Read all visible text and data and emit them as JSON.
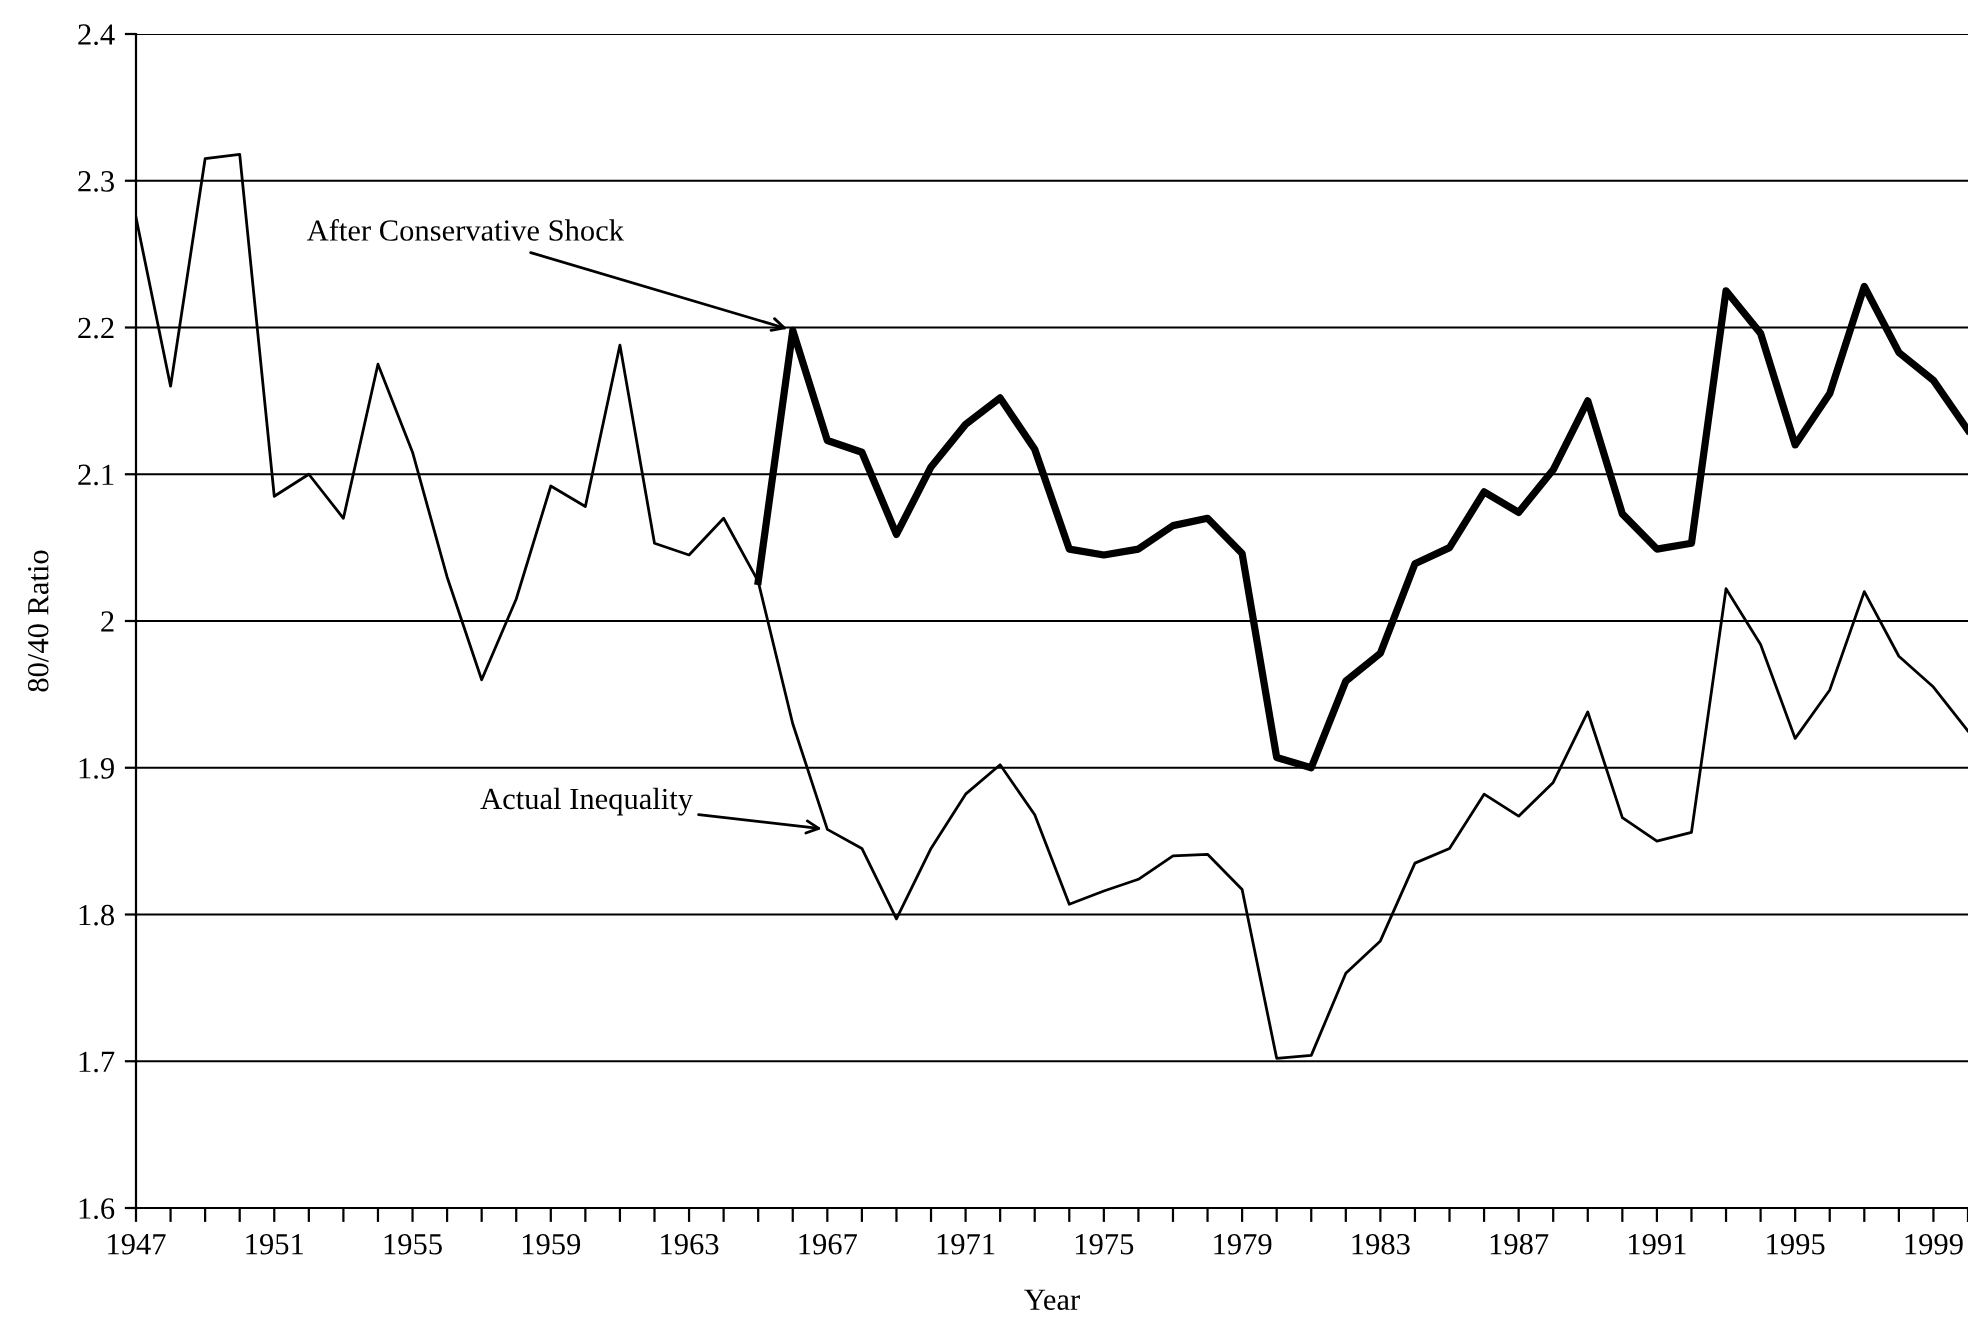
{
  "chart_data": {
    "type": "line",
    "xlabel": "Year",
    "ylabel": "80/40 Ratio",
    "series": [
      {
        "color": "#000000",
        "x": [
          1947,
          1948,
          1949,
          1950,
          1951,
          1952,
          1953,
          1954,
          1955,
          1956,
          1957,
          1958,
          1959,
          1960,
          1961,
          1962,
          1963,
          1964,
          1965,
          1966,
          1967,
          1968,
          1969,
          1970,
          1971,
          1972,
          1973,
          1974,
          1975,
          1976,
          1977,
          1978,
          1979,
          1980,
          1981,
          1982,
          1983,
          1984,
          1985,
          1986,
          1987,
          1988,
          1989,
          1990,
          1991,
          1992,
          1993,
          1994,
          1995,
          1996,
          1997,
          1998,
          1999,
          2000
        ],
        "values": [
          2.275,
          2.16,
          2.315,
          2.318,
          2.085,
          2.1,
          2.07,
          2.175,
          2.115,
          2.03,
          1.96,
          2.015,
          2.092,
          2.078,
          2.188,
          2.053,
          2.045,
          2.07,
          2.027,
          1.93,
          1.858,
          1.845,
          1.797,
          1.845,
          1.882,
          1.902,
          1.868,
          1.807,
          1.816,
          1.824,
          1.84,
          1.841,
          1.817,
          1.702,
          1.704,
          1.76,
          1.782,
          1.835,
          1.845,
          1.882,
          1.867,
          1.89,
          1.938,
          1.866,
          1.85,
          1.856,
          2.022,
          1.984,
          1.92,
          1.953,
          2.02,
          1.976,
          1.955,
          1.925
        ]
      },
      {
        "color": "#000000",
        "x": [
          1965,
          1966,
          1967,
          1968,
          1969,
          1970,
          1971,
          1972,
          1973,
          1974,
          1975,
          1976,
          1977,
          1978,
          1979,
          1980,
          1981,
          1982,
          1983,
          1984,
          1985,
          1986,
          1987,
          1988,
          1989,
          1990,
          1991,
          1992,
          1993,
          1994,
          1995,
          1996,
          1997,
          1998,
          1999,
          2000
        ],
        "values": [
          2.027,
          2.198,
          2.123,
          2.115,
          2.059,
          2.105,
          2.134,
          2.152,
          2.117,
          2.049,
          2.045,
          2.049,
          2.065,
          2.07,
          2.046,
          1.907,
          1.9,
          1.959,
          1.978,
          2.039,
          2.05,
          2.088,
          2.074,
          2.103,
          2.15,
          2.073,
          2.049,
          2.053,
          2.225,
          2.196,
          2.12,
          2.155,
          2.228,
          2.183,
          2.164,
          2.13
        ]
      }
    ],
    "annotations": [
      {
        "text": "After Conservative Shock",
        "x": 1966,
        "y": 2.198
      },
      {
        "text": "Actual Inequality",
        "x": 1967,
        "y": 1.858
      }
    ],
    "xlim": [
      1947,
      2000
    ],
    "xticks": [
      1947,
      {
        "value": 1948,
        "label": null
      },
      {
        "value": 1949,
        "label": null
      },
      {
        "value": 1950,
        "label": null
      },
      1951,
      {
        "value": 1952,
        "label": null
      },
      {
        "value": 1953,
        "label": null
      },
      {
        "value": 1954,
        "label": null
      },
      1955,
      {
        "value": 1956,
        "label": null
      },
      {
        "value": 1957,
        "label": null
      },
      {
        "value": 1958,
        "label": null
      },
      1959,
      {
        "value": 1960,
        "label": null
      },
      {
        "value": 1961,
        "label": null
      },
      {
        "value": 1962,
        "label": null
      },
      1963,
      {
        "value": 1964,
        "label": null
      },
      {
        "value": 1965,
        "label": null
      },
      {
        "value": 1966,
        "label": null
      },
      1967,
      {
        "value": 1968,
        "label": null
      },
      {
        "value": 1969,
        "label": null
      },
      {
        "value": 1970,
        "label": null
      },
      1971,
      {
        "value": 1972,
        "label": null
      },
      {
        "value": 1973,
        "label": null
      },
      {
        "value": 1974,
        "label": null
      },
      1975,
      {
        "value": 1976,
        "label": null
      },
      {
        "value": 1977,
        "label": null
      },
      {
        "value": 1978,
        "label": null
      },
      1979,
      {
        "value": 1980,
        "label": null
      },
      {
        "value": 1981,
        "label": null
      },
      {
        "value": 1982,
        "label": null
      },
      1983,
      {
        "value": 1984,
        "label": null
      },
      {
        "value": 1985,
        "label": null
      },
      {
        "value": 1986,
        "label": null
      },
      1987,
      {
        "value": 1988,
        "label": null
      },
      {
        "value": 1989,
        "label": null
      },
      {
        "value": 1990,
        "label": null
      },
      1991,
      {
        "value": 1992,
        "label": null
      },
      {
        "value": 1993,
        "label": null
      },
      {
        "value": 1994,
        "label": null
      },
      1995,
      {
        "value": 1996,
        "label": null
      },
      {
        "value": 1997,
        "label": null
      },
      {
        "value": 1998,
        "label": null
      },
      1999,
      {
        "value": 2000,
        "label": null
      }
    ],
    "ylim": [
      1.6,
      2.4
    ],
    "yticks": [
      1.6,
      1.7,
      1.8,
      1.9,
      2,
      2.1,
      2.2,
      2.3,
      2.4
    ],
    "grid": "y",
    "legend": false,
    "marker": "none",
    "line_style": "solid"
  }
}
